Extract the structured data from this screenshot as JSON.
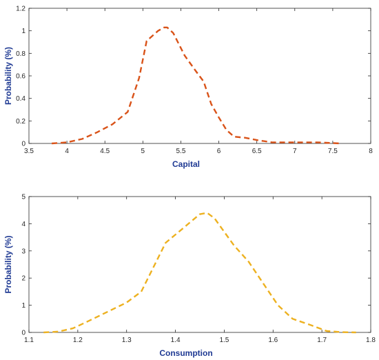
{
  "chart_data": [
    {
      "type": "line",
      "title": "",
      "xlabel": "Capital",
      "ylabel": "Probability (%)",
      "xlim": [
        3.5,
        8
      ],
      "ylim": [
        0,
        1.2
      ],
      "xticks": [
        3.5,
        4,
        4.5,
        5,
        5.5,
        6,
        6.5,
        7,
        7.5,
        8
      ],
      "yticks": [
        0,
        0.2,
        0.4,
        0.6,
        0.8,
        1,
        1.2
      ],
      "xtick_labels": [
        "3.5",
        "4",
        "4.5",
        "5",
        "5.5",
        "6",
        "6.5",
        "7",
        "7.5",
        "8"
      ],
      "ytick_labels": [
        "0",
        "0.2",
        "0.4",
        "0.6",
        "0.8",
        "1",
        "1.2"
      ],
      "grid": false,
      "series": [
        {
          "color": "#D95319",
          "line_style": "dashed",
          "x": [
            3.8,
            4.0,
            4.2,
            4.4,
            4.6,
            4.8,
            4.95,
            5.05,
            5.2,
            5.28,
            5.32,
            5.4,
            5.55,
            5.7,
            5.8,
            5.9,
            6.0,
            6.1,
            6.2,
            6.35,
            6.5,
            6.7,
            7.0,
            7.3,
            7.6
          ],
          "y": [
            0.0,
            0.01,
            0.04,
            0.1,
            0.17,
            0.28,
            0.58,
            0.91,
            1.0,
            1.03,
            1.03,
            0.98,
            0.78,
            0.64,
            0.55,
            0.35,
            0.23,
            0.12,
            0.06,
            0.05,
            0.03,
            0.01,
            0.01,
            0.01,
            0.0
          ]
        }
      ]
    },
    {
      "type": "line",
      "title": "",
      "xlabel": "Consumption",
      "ylabel": "Probability (%)",
      "xlim": [
        1.1,
        1.8
      ],
      "ylim": [
        0,
        5
      ],
      "xticks": [
        1.1,
        1.2,
        1.3,
        1.4,
        1.5,
        1.6,
        1.7,
        1.8
      ],
      "yticks": [
        0,
        1,
        2,
        3,
        4,
        5
      ],
      "xtick_labels": [
        "1.1",
        "1.2",
        "1.3",
        "1.4",
        "1.5",
        "1.6",
        "1.7",
        "1.8"
      ],
      "ytick_labels": [
        "0",
        "1",
        "2",
        "3",
        "4",
        "5"
      ],
      "grid": false,
      "series": [
        {
          "color": "#EDB120",
          "line_style": "dashed",
          "x": [
            1.13,
            1.16,
            1.19,
            1.22,
            1.26,
            1.3,
            1.33,
            1.355,
            1.38,
            1.41,
            1.43,
            1.45,
            1.465,
            1.48,
            1.5,
            1.52,
            1.55,
            1.58,
            1.61,
            1.64,
            1.68,
            1.71,
            1.74,
            1.77
          ],
          "y": [
            0.0,
            0.03,
            0.15,
            0.4,
            0.75,
            1.1,
            1.5,
            2.4,
            3.3,
            3.75,
            4.05,
            4.35,
            4.4,
            4.2,
            3.7,
            3.2,
            2.6,
            1.8,
            1.0,
            0.5,
            0.25,
            0.05,
            0.01,
            0.0
          ]
        }
      ]
    }
  ]
}
